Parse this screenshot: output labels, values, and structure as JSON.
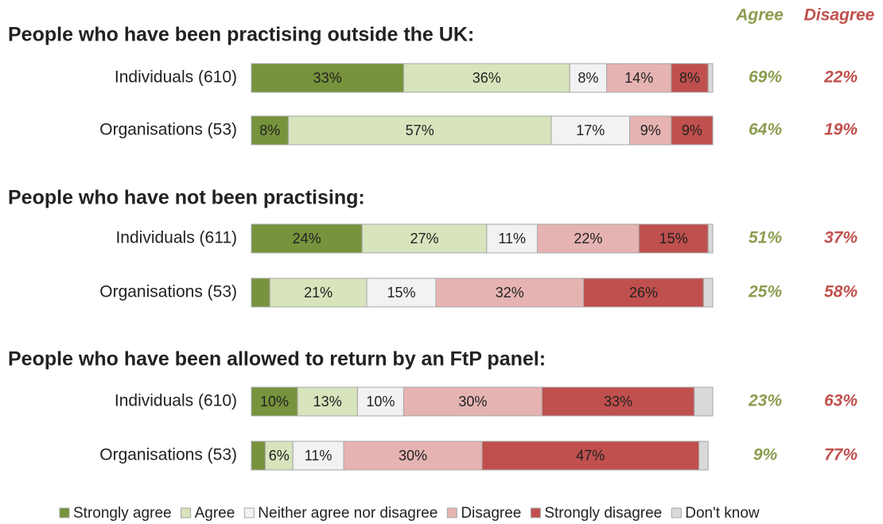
{
  "chart_data": {
    "type": "stacked-bar",
    "orientation": "horizontal",
    "xlim": [
      0,
      100
    ],
    "agree_header": "Agree",
    "disagree_header": "Disagree",
    "agree_color": "#8b9d4f",
    "disagree_color": "#c0504d",
    "groups": [
      {
        "title": "People who have been practising outside the UK:",
        "categories": [
          "Individuals (610)",
          "Organisations (53)"
        ]
      },
      {
        "title": "People who have not been practising:",
        "categories": [
          "Individuals (611)",
          "Organisations (53)"
        ]
      },
      {
        "title": "People who have been allowed to return by an FtP panel:",
        "categories": [
          "Individuals (610)",
          "Organisations (53)"
        ]
      }
    ],
    "series": [
      {
        "name": "Strongly agree",
        "color": "#77933c",
        "values": [
          33,
          8,
          24,
          4,
          10,
          3
        ],
        "value_labels": [
          "33%",
          "8%",
          "24%",
          null,
          "10%",
          null
        ]
      },
      {
        "name": "Agree",
        "color": "#d7e4bc",
        "values": [
          36,
          57,
          27,
          21,
          13,
          6
        ],
        "value_labels": [
          "36%",
          "57%",
          "27%",
          "21%",
          "13%",
          "6%"
        ]
      },
      {
        "name": "Neither agree nor disagree",
        "color": "#f2f2f2",
        "values": [
          8,
          17,
          11,
          15,
          10,
          11
        ],
        "value_labels": [
          "8%",
          "17%",
          "11%",
          "15%",
          "10%",
          "11%"
        ]
      },
      {
        "name": "Disagree",
        "color": "#e6b3b3",
        "values": [
          14,
          9,
          22,
          32,
          30,
          30
        ],
        "value_labels": [
          "14%",
          "9%",
          "22%",
          "32%",
          "30%",
          "30%"
        ]
      },
      {
        "name": "Strongly disagree",
        "color": "#c0504d",
        "values": [
          8,
          9,
          15,
          26,
          33,
          47
        ],
        "value_labels": [
          "8%",
          "9%",
          "15%",
          "26%",
          "33%",
          "47%"
        ]
      },
      {
        "name": "Don't know",
        "color": "#d9d9d9",
        "values": [
          1,
          0,
          1,
          2,
          4,
          2
        ],
        "value_labels": [
          null,
          null,
          null,
          null,
          null,
          null
        ]
      }
    ],
    "agree_totals": [
      69,
      64,
      51,
      25,
      23,
      9
    ],
    "agree_labels": [
      "69%",
      "64%",
      "51%",
      "25%",
      "23%",
      "9%"
    ],
    "disagree_totals": [
      22,
      19,
      37,
      58,
      63,
      77
    ],
    "disagree_labels": [
      "22%",
      "19%",
      "37%",
      "58%",
      "63%",
      "77%"
    ]
  }
}
